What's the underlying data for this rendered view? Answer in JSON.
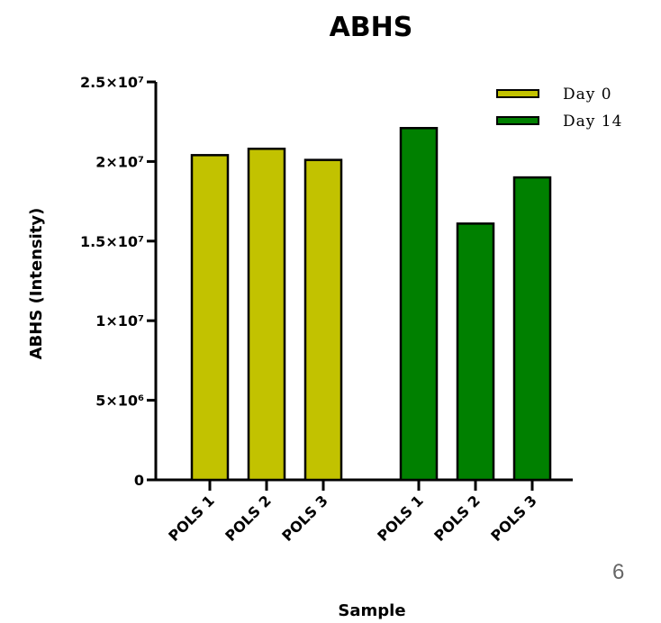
{
  "page_number": "6",
  "chart_data": {
    "type": "bar",
    "title": "ABHS",
    "xlabel": "Sample",
    "ylabel": "ABHS (Intensity)",
    "ylim": [
      0,
      25000000
    ],
    "yticks": [
      {
        "value": 0,
        "label": "0"
      },
      {
        "value": 5000000,
        "label": "5×10⁶"
      },
      {
        "value": 10000000,
        "label": "1×10⁷"
      },
      {
        "value": 15000000,
        "label": "1.5×10⁷"
      },
      {
        "value": 20000000,
        "label": "2×10⁷"
      },
      {
        "value": 25000000,
        "label": "2.5×10⁷"
      }
    ],
    "legend_position": "top-right",
    "series": [
      {
        "name": "Day 0",
        "color": "#c2c200",
        "categories": [
          "POLS 1",
          "POLS 2",
          "POLS 3"
        ],
        "values": [
          20400000,
          20800000,
          20100000
        ]
      },
      {
        "name": "Day 14",
        "color": "#008000",
        "categories": [
          "POLS 1",
          "POLS 2",
          "POLS 3"
        ],
        "values": [
          22100000,
          16100000,
          19000000
        ]
      }
    ]
  }
}
